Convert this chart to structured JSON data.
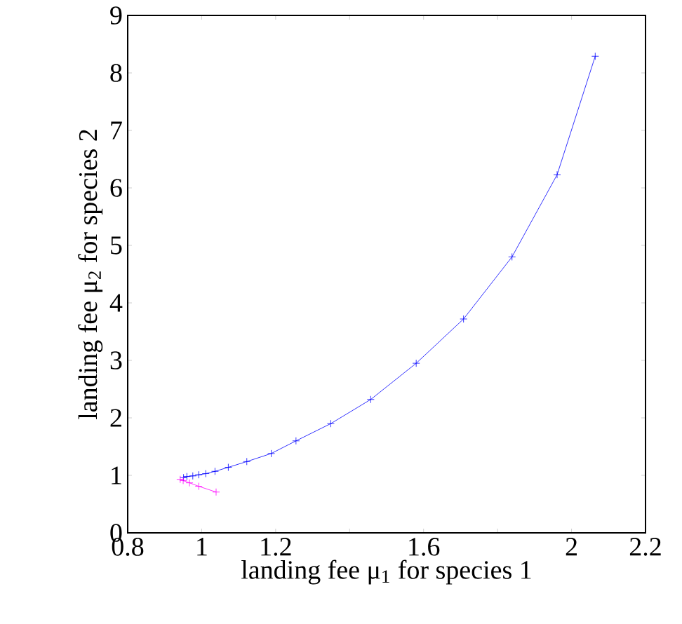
{
  "chart_data": {
    "type": "line",
    "xlabel": "landing fee μ$_{1}$ for species 1",
    "ylabel": "landing fee μ$_{2}$ for species 2",
    "xlim": [
      0.8,
      2.2
    ],
    "ylim": [
      0,
      9
    ],
    "xticks": [
      0.8,
      1,
      1.2,
      {
        "value": 1.4,
        "label": null
      },
      1.6,
      {
        "value": 1.8,
        "label": null
      },
      2,
      2.2
    ],
    "yticks": [
      0,
      1,
      2,
      3,
      4,
      5,
      6,
      7,
      8,
      9
    ],
    "marker": "cross",
    "grid": false,
    "series": [
      {
        "color": "#0000ff",
        "x": [
          0.951,
          0.96,
          0.976,
          0.992,
          1.011,
          1.036,
          1.072,
          1.122,
          1.188,
          1.255,
          1.349,
          1.457,
          1.58,
          1.708,
          1.839,
          1.961,
          2.064
        ],
        "values": [
          0.96,
          0.98,
          0.99,
          1.01,
          1.03,
          1.07,
          1.14,
          1.24,
          1.38,
          1.6,
          1.9,
          2.32,
          2.95,
          3.72,
          4.8,
          6.23,
          8.29
        ]
      },
      {
        "color": "#ff00ff",
        "x": [
          0.942,
          0.95,
          0.967,
          0.992,
          1.039
        ],
        "values": [
          0.93,
          0.91,
          0.87,
          0.81,
          0.71
        ]
      }
    ]
  }
}
